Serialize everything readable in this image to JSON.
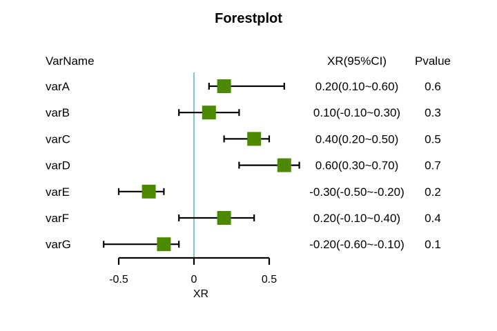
{
  "chart_data": {
    "type": "forest",
    "title": "Forestplot",
    "xlabel": "XR",
    "headers": {
      "name": "VarName",
      "ci": "XR(95%CI)",
      "p": "Pvalue"
    },
    "xlim": [
      -0.5,
      0.5
    ],
    "xticks": [
      {
        "value": -0.5,
        "label": "-0.5"
      },
      {
        "value": 0,
        "label": "0"
      },
      {
        "value": 0.5,
        "label": "0.5"
      }
    ],
    "reference_line": 0,
    "rows": [
      {
        "name": "varA",
        "estimate": 0.2,
        "lower": 0.1,
        "upper": 0.6,
        "ci_text": "0.20(0.10~0.60)",
        "p_text": "0.6"
      },
      {
        "name": "varB",
        "estimate": 0.1,
        "lower": -0.1,
        "upper": 0.3,
        "ci_text": "0.10(-0.10~0.30)",
        "p_text": "0.3"
      },
      {
        "name": "varC",
        "estimate": 0.4,
        "lower": 0.2,
        "upper": 0.5,
        "ci_text": "0.40(0.20~0.50)",
        "p_text": "0.5"
      },
      {
        "name": "varD",
        "estimate": 0.6,
        "lower": 0.3,
        "upper": 0.7,
        "ci_text": "0.60(0.30~0.70)",
        "p_text": "0.7"
      },
      {
        "name": "varE",
        "estimate": -0.3,
        "lower": -0.5,
        "upper": -0.2,
        "ci_text": "-0.30(-0.50~-0.20)",
        "p_text": "0.2"
      },
      {
        "name": "varF",
        "estimate": 0.2,
        "lower": -0.1,
        "upper": 0.4,
        "ci_text": "0.20(-0.10~0.40)",
        "p_text": "0.4"
      },
      {
        "name": "varG",
        "estimate": -0.2,
        "lower": -0.6,
        "upper": -0.1,
        "ci_text": "-0.20(-0.60~-0.10)",
        "p_text": "0.1"
      }
    ],
    "colors": {
      "marker": "#4b8a00",
      "reference_line": "#7ec8c8",
      "ci": "#000000"
    }
  }
}
